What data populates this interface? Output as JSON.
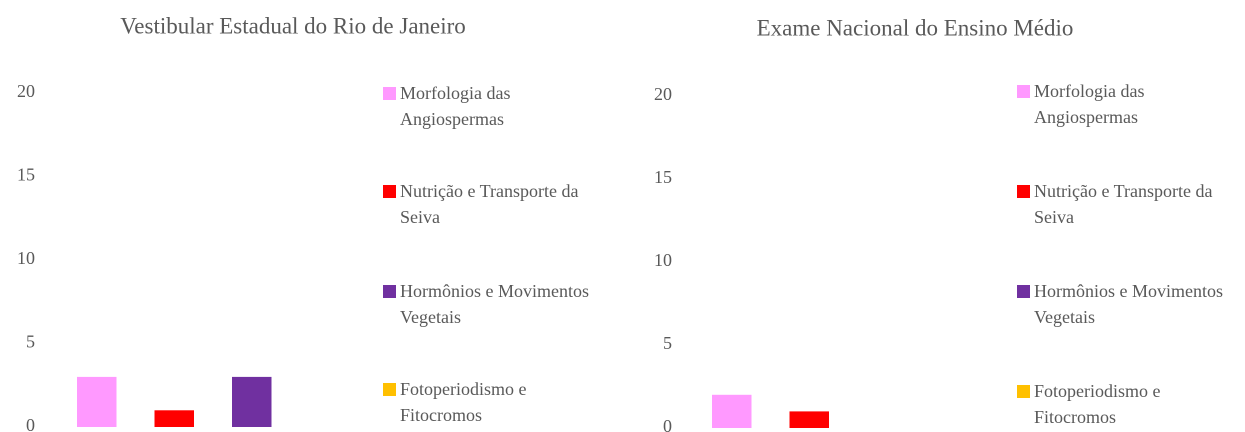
{
  "chart_data": [
    {
      "type": "bar",
      "title": "Vestibular Estadual do Rio de Janeiro",
      "ylim": [
        0,
        20
      ],
      "yticks": [
        0,
        5,
        10,
        15,
        20
      ],
      "grid": false,
      "legend": "right",
      "series": [
        {
          "name": "Morfologia das Angiospermas",
          "color": "#ff99ff",
          "values": [
            3
          ]
        },
        {
          "name": "Nutrição e Transporte da Seiva",
          "color": "#ff0000",
          "values": [
            1
          ]
        },
        {
          "name": "Hormônios e Movimentos Vegetais",
          "color": "#7030a0",
          "values": [
            3
          ]
        },
        {
          "name": "Fotoperiodismo e Fitocromos",
          "color": "#ffc000",
          "values": [
            0
          ]
        }
      ]
    },
    {
      "type": "bar",
      "title": "Exame Nacional do Ensino Médio",
      "ylim": [
        0,
        20
      ],
      "yticks": [
        0,
        5,
        10,
        15,
        20
      ],
      "grid": false,
      "legend": "right",
      "series": [
        {
          "name": "Morfologia das Angiospermas",
          "color": "#ff99ff",
          "values": [
            2
          ]
        },
        {
          "name": "Nutrição e Transporte da Seiva",
          "color": "#ff0000",
          "values": [
            1
          ]
        },
        {
          "name": "Hormônios e Movimentos Vegetais",
          "color": "#7030a0",
          "values": [
            0
          ]
        },
        {
          "name": "Fotoperiodismo e Fitocromos",
          "color": "#ffc000",
          "values": [
            0
          ]
        }
      ]
    }
  ]
}
